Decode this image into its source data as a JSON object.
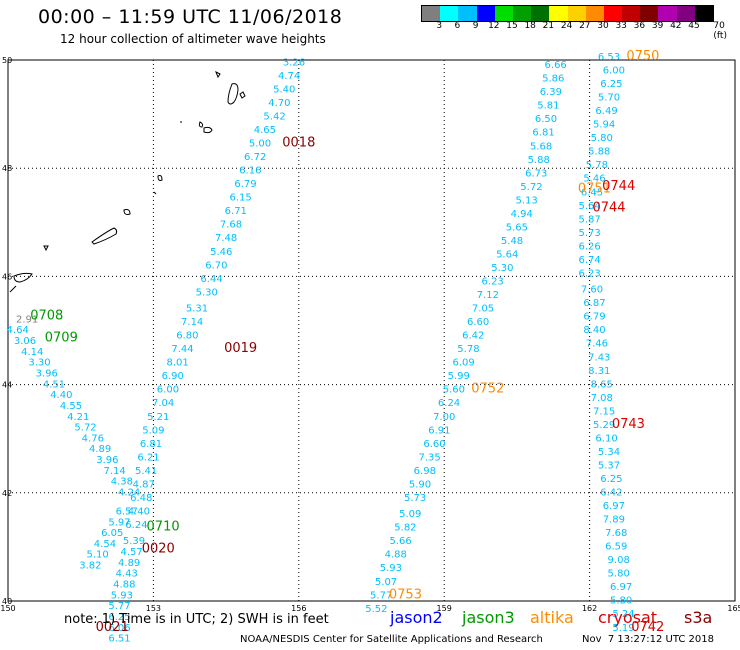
{
  "header": {
    "title": "00:00 – 11:59 UTC 11/06/2018",
    "subtitle": "12 hour collection of altimeter wave heights"
  },
  "colorbar": {
    "colors": [
      "#7f7f7f",
      "#00ffff",
      "#00bfff",
      "#0000ff",
      "#00dd00",
      "#00a000",
      "#007000",
      "#ffff00",
      "#ffd000",
      "#ff8c00",
      "#ff0000",
      "#c00000",
      "#800000",
      "#b000b0",
      "#800080",
      "#000000"
    ],
    "labels": [
      "3",
      "6",
      "9",
      "12",
      "15",
      "18",
      "21",
      "24",
      "27",
      "30",
      "33",
      "36",
      "39",
      "42",
      "45",
      "70 (ft)"
    ]
  },
  "axes": {
    "x_ticks": [
      "150",
      "153",
      "156",
      "159",
      "162",
      "165"
    ],
    "y_ticks": [
      "50",
      "48",
      "46",
      "44",
      "42",
      "40"
    ]
  },
  "colors": {
    "jason2": "#0000ff",
    "jason3": "#009900",
    "altika": "#ff8c00",
    "cryosat": "#dd0000",
    "s3a": "#8b0000",
    "value": "#00bfff",
    "gray": "#808080"
  },
  "tracks": [
    {
      "name": "track-0018",
      "color": "value",
      "points": [
        [
          155.9,
          49.9,
          "3.26"
        ],
        [
          155.8,
          49.65,
          "4.74"
        ],
        [
          155.7,
          49.4,
          "5.40"
        ],
        [
          155.6,
          49.15,
          "4.70"
        ],
        [
          155.5,
          48.9,
          "5.42"
        ],
        [
          155.3,
          48.65,
          "4.65"
        ],
        [
          155.2,
          48.4,
          "5.00"
        ],
        [
          155.1,
          48.15,
          "6.72"
        ],
        [
          155.0,
          47.9,
          "6.16"
        ],
        [
          154.9,
          47.65,
          "6.79"
        ],
        [
          154.8,
          47.4,
          "6.15"
        ],
        [
          154.7,
          47.15,
          "6.71"
        ],
        [
          154.6,
          46.9,
          "7.68"
        ],
        [
          154.5,
          46.65,
          "7.48"
        ],
        [
          154.4,
          46.4,
          "5.46"
        ],
        [
          154.3,
          46.15,
          "6.70"
        ],
        [
          154.2,
          45.9,
          "6.44"
        ],
        [
          154.1,
          45.65,
          "5.30"
        ]
      ]
    },
    {
      "name": "track-0019",
      "color": "value",
      "points": [
        [
          153.9,
          45.35,
          "5.31"
        ],
        [
          153.8,
          45.1,
          "7.14"
        ],
        [
          153.7,
          44.85,
          "6.80"
        ],
        [
          153.6,
          44.6,
          "7.44"
        ],
        [
          153.5,
          44.35,
          "8.01"
        ],
        [
          153.4,
          44.1,
          "6.90"
        ],
        [
          153.3,
          43.85,
          "6.00"
        ],
        [
          153.2,
          43.6,
          "7.04"
        ],
        [
          153.1,
          43.35,
          "5.21"
        ],
        [
          153.0,
          43.1,
          "5.09"
        ],
        [
          152.95,
          42.85,
          "6.81"
        ],
        [
          152.9,
          42.6,
          "6.21"
        ],
        [
          152.85,
          42.35,
          "5.41"
        ],
        [
          152.8,
          42.1,
          "4.87"
        ],
        [
          152.75,
          41.85,
          "6.48"
        ],
        [
          152.7,
          41.6,
          "4.40"
        ],
        [
          152.65,
          41.35,
          "6.24"
        ]
      ]
    },
    {
      "name": "track-0020",
      "color": "value",
      "points": [
        [
          152.6,
          41.05,
          "5.39"
        ],
        [
          152.55,
          40.85,
          "4.57"
        ],
        [
          152.5,
          40.65,
          "4.89"
        ],
        [
          152.45,
          40.45,
          "4.43"
        ],
        [
          152.4,
          40.25,
          "4.88"
        ],
        [
          152.35,
          40.05,
          "5.93"
        ],
        [
          152.3,
          39.85,
          "5.77"
        ],
        [
          152.3,
          39.65,
          "6.25"
        ],
        [
          152.3,
          39.45,
          "6.06"
        ],
        [
          152.3,
          39.25,
          "6.51"
        ]
      ]
    },
    {
      "name": "track-0708-0710",
      "color": "value",
      "points": [
        [
          150.2,
          44.95,
          "4.64"
        ],
        [
          150.35,
          44.75,
          "3.06"
        ],
        [
          150.5,
          44.55,
          "4.14"
        ],
        [
          150.65,
          44.35,
          "3.30"
        ],
        [
          150.8,
          44.15,
          "3.96"
        ],
        [
          150.95,
          43.95,
          "4.51"
        ],
        [
          151.1,
          43.75,
          "4.40"
        ],
        [
          151.3,
          43.55,
          "4.55"
        ],
        [
          151.45,
          43.35,
          "4.21"
        ],
        [
          151.6,
          43.15,
          "5.72"
        ],
        [
          151.75,
          42.95,
          "4.76"
        ],
        [
          151.9,
          42.75,
          "4.89"
        ],
        [
          152.05,
          42.55,
          "3.96"
        ],
        [
          152.2,
          42.35,
          "7.14"
        ],
        [
          152.35,
          42.15,
          "4.38"
        ],
        [
          152.5,
          41.95,
          "4.24"
        ]
      ]
    },
    {
      "name": "track-0021",
      "color": "value",
      "points": [
        [
          152.45,
          41.6,
          "6.57"
        ],
        [
          152.3,
          41.4,
          "5.97"
        ],
        [
          152.15,
          41.2,
          "6.05"
        ],
        [
          152.0,
          41.0,
          "4.54"
        ],
        [
          151.85,
          40.8,
          "5.10"
        ],
        [
          151.7,
          40.6,
          "3.82"
        ]
      ]
    },
    {
      "name": "track-0752-0753",
      "color": "value",
      "points": [
        [
          161.3,
          49.85,
          "6.66"
        ],
        [
          161.25,
          49.6,
          "5.86"
        ],
        [
          161.2,
          49.35,
          "6.39"
        ],
        [
          161.15,
          49.1,
          "5.81"
        ],
        [
          161.1,
          48.85,
          "6.50"
        ],
        [
          161.05,
          48.6,
          "6.81"
        ],
        [
          161.0,
          48.35,
          "5.68"
        ],
        [
          160.95,
          48.1,
          "5.88"
        ],
        [
          160.9,
          47.85,
          "6.73"
        ],
        [
          160.8,
          47.6,
          "5.72"
        ],
        [
          160.7,
          47.35,
          "5.13"
        ],
        [
          160.6,
          47.1,
          "4.94"
        ],
        [
          160.5,
          46.85,
          "5.65"
        ],
        [
          160.4,
          46.6,
          "5.48"
        ],
        [
          160.3,
          46.35,
          "5.64"
        ],
        [
          160.2,
          46.1,
          "5.30"
        ],
        [
          160.0,
          45.85,
          "6.23"
        ],
        [
          159.9,
          45.6,
          "7.12"
        ],
        [
          159.8,
          45.35,
          "7.05"
        ],
        [
          159.7,
          45.1,
          "6.60"
        ],
        [
          159.6,
          44.85,
          "6.42"
        ],
        [
          159.5,
          44.6,
          "5.78"
        ],
        [
          159.4,
          44.35,
          "6.09"
        ],
        [
          159.3,
          44.1,
          "5.99"
        ],
        [
          159.2,
          43.85,
          "5.60"
        ],
        [
          159.1,
          43.6,
          "6.24"
        ],
        [
          159.0,
          43.35,
          "7.00"
        ],
        [
          158.9,
          43.1,
          "6.91"
        ],
        [
          158.8,
          42.85,
          "6.60"
        ],
        [
          158.7,
          42.6,
          "7.35"
        ],
        [
          158.6,
          42.35,
          "6.98"
        ],
        [
          158.5,
          42.1,
          "5.90"
        ],
        [
          158.4,
          41.85,
          "5.73"
        ],
        [
          158.3,
          41.55,
          "5.09"
        ],
        [
          158.2,
          41.3,
          "5.82"
        ],
        [
          158.1,
          41.05,
          "5.66"
        ],
        [
          158.0,
          40.8,
          "4.88"
        ],
        [
          157.9,
          40.55,
          "5.93"
        ],
        [
          157.8,
          40.3,
          "5.07"
        ],
        [
          157.7,
          40.05,
          "5.77"
        ],
        [
          157.6,
          39.8,
          "5.52"
        ]
      ]
    },
    {
      "name": "track-0742-0750",
      "color": "value",
      "points": [
        [
          162.4,
          50.0,
          "6.53"
        ],
        [
          162.5,
          49.75,
          "6.00"
        ],
        [
          162.45,
          49.5,
          "6.25"
        ],
        [
          162.4,
          49.25,
          "5.70"
        ],
        [
          162.35,
          49.0,
          "6.49"
        ],
        [
          162.3,
          48.75,
          "5.94"
        ],
        [
          162.25,
          48.5,
          "5.80"
        ],
        [
          162.2,
          48.25,
          "5.88"
        ],
        [
          162.15,
          48.0,
          "5.78"
        ],
        [
          162.1,
          47.75,
          "5.46"
        ],
        [
          162.05,
          47.5,
          "6.45"
        ],
        [
          162.0,
          47.25,
          "5.64"
        ],
        [
          162.0,
          47.0,
          "5.87"
        ],
        [
          162.0,
          46.75,
          "5.73"
        ],
        [
          162.0,
          46.5,
          "6.26"
        ],
        [
          162.0,
          46.25,
          "6.74"
        ],
        [
          162.0,
          46.0,
          "6.23"
        ],
        [
          162.05,
          45.7,
          "7.60"
        ],
        [
          162.1,
          45.45,
          "6.87"
        ],
        [
          162.1,
          45.2,
          "6.79"
        ],
        [
          162.1,
          44.95,
          "8.40"
        ],
        [
          162.15,
          44.7,
          "7.46"
        ],
        [
          162.2,
          44.45,
          "7.43"
        ],
        [
          162.2,
          44.2,
          "8.31"
        ],
        [
          162.25,
          43.95,
          "8.65"
        ],
        [
          162.25,
          43.7,
          "7.08"
        ],
        [
          162.3,
          43.45,
          "7.15"
        ],
        [
          162.3,
          43.2,
          "5.29"
        ],
        [
          162.35,
          42.95,
          "6.10"
        ],
        [
          162.4,
          42.7,
          "5.34"
        ],
        [
          162.4,
          42.45,
          "5.37"
        ],
        [
          162.45,
          42.2,
          "6.25"
        ],
        [
          162.45,
          41.95,
          "6.42"
        ],
        [
          162.5,
          41.7,
          "6.97"
        ],
        [
          162.5,
          41.45,
          "7.89"
        ],
        [
          162.55,
          41.2,
          "7.68"
        ],
        [
          162.55,
          40.95,
          "6.59"
        ],
        [
          162.6,
          40.7,
          "9.08"
        ],
        [
          162.6,
          40.45,
          "5.80"
        ],
        [
          162.65,
          40.2,
          "6.97"
        ],
        [
          162.65,
          39.95,
          "5.80"
        ],
        [
          162.7,
          39.7,
          "5.24"
        ],
        [
          162.7,
          39.45,
          "5.19"
        ]
      ]
    }
  ],
  "time_labels": [
    {
      "text": "0018",
      "lon": 156.0,
      "lat": 48.4,
      "color": "s3a"
    },
    {
      "text": "0019",
      "lon": 154.8,
      "lat": 44.6,
      "color": "s3a"
    },
    {
      "text": "0020",
      "lon": 153.1,
      "lat": 40.9,
      "color": "s3a"
    },
    {
      "text": "0021",
      "lon": 152.15,
      "lat": 39.45,
      "color": "s3a"
    },
    {
      "text": "0708",
      "lon": 150.8,
      "lat": 45.2,
      "color": "jason3"
    },
    {
      "text": "0709",
      "lon": 151.1,
      "lat": 44.8,
      "color": "jason3"
    },
    {
      "text": "0710",
      "lon": 153.2,
      "lat": 41.3,
      "color": "jason3"
    },
    {
      "text": "0750",
      "lon": 163.1,
      "lat": 50.0,
      "color": "altika"
    },
    {
      "text": "0751",
      "lon": 162.1,
      "lat": 47.55,
      "color": "altika"
    },
    {
      "text": "0752",
      "lon": 159.9,
      "lat": 43.85,
      "color": "altika"
    },
    {
      "text": "0753",
      "lon": 158.2,
      "lat": 40.05,
      "color": "altika"
    },
    {
      "text": "0744",
      "lon": 162.6,
      "lat": 47.6,
      "color": "cryosat"
    },
    {
      "text": "0744",
      "lon": 162.4,
      "lat": 47.2,
      "color": "cryosat"
    },
    {
      "text": "0743",
      "lon": 162.8,
      "lat": 43.2,
      "color": "cryosat"
    },
    {
      "text": "0742",
      "lon": 163.2,
      "lat": 39.45,
      "color": "cryosat"
    }
  ],
  "extra_values": [
    {
      "text": "2.91",
      "lon": 150.0,
      "lat": 45.15,
      "color": "gray"
    }
  ],
  "note": "note: 1) Time is in UTC; 2) SWH is in feet",
  "legend": {
    "jason2": "jason2",
    "jason3": "jason3",
    "altika": "altika",
    "cryosat": "cryosat",
    "s3a": "s3a"
  },
  "credit": "NOAA/NESDIS Center for Satellite Applications and Research",
  "timestamp": "Nov  7 13:27:12 UTC 2018"
}
